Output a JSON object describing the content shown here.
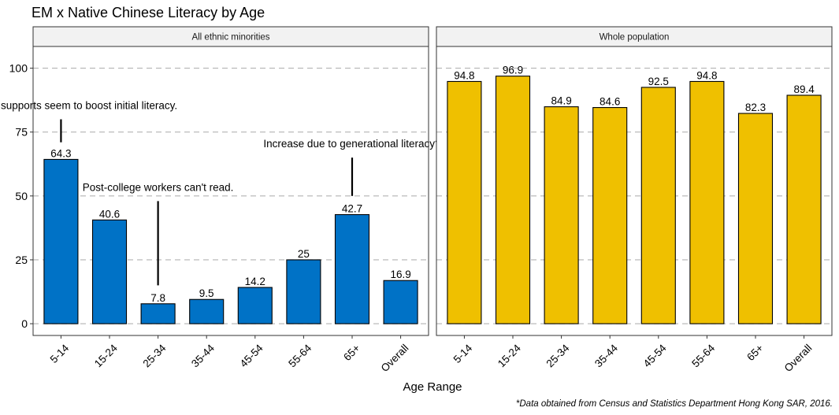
{
  "chart_data": {
    "type": "bar",
    "title": "EM x Native Chinese Literacy by Age",
    "xlabel": "Age Range",
    "ylabel": "",
    "caption": "*Data obtained from Census and Statistics Department Hong Kong SAR, 2016.",
    "ylim": [
      -4.6,
      108.5
    ],
    "yticks": [
      0,
      25,
      50,
      75,
      100
    ],
    "ytick_labels": [
      "0",
      "25",
      "50",
      "75",
      "100"
    ],
    "grid": "horizontal dashed",
    "categories": [
      "5-14",
      "15-24",
      "25-34",
      "35-44",
      "45-54",
      "55-64",
      "65+",
      "Overall"
    ],
    "panels": [
      {
        "name": "All ethnic minorities",
        "color": "#0072c6",
        "values": [
          64.3,
          40.6,
          7.8,
          9.5,
          14.2,
          25,
          42.7,
          16.9
        ],
        "value_labels": [
          "64.3",
          "40.6",
          "7.8",
          "9.5",
          "14.2",
          "25",
          "42.7",
          "16.9"
        ],
        "annotations": [
          {
            "text": "School age supports seem to boost initial literacy.",
            "category_index": 0,
            "line_from": 71,
            "line_to": 80,
            "text_value": 84
          },
          {
            "text": "Post-college workers can't read.",
            "category_index": 2,
            "line_from": 15,
            "line_to": 48,
            "text_value": 52
          },
          {
            "text": "Increase due to generational literacy?",
            "category_index": 6,
            "line_from": 50,
            "line_to": 65,
            "text_value": 69
          }
        ]
      },
      {
        "name": "Whole population",
        "color": "#efc000",
        "values": [
          94.8,
          96.9,
          84.9,
          84.6,
          92.5,
          94.8,
          82.3,
          89.4
        ],
        "value_labels": [
          "94.8",
          "96.9",
          "84.9",
          "84.6",
          "92.5",
          "94.8",
          "82.3",
          "89.4"
        ],
        "annotations": []
      }
    ]
  }
}
